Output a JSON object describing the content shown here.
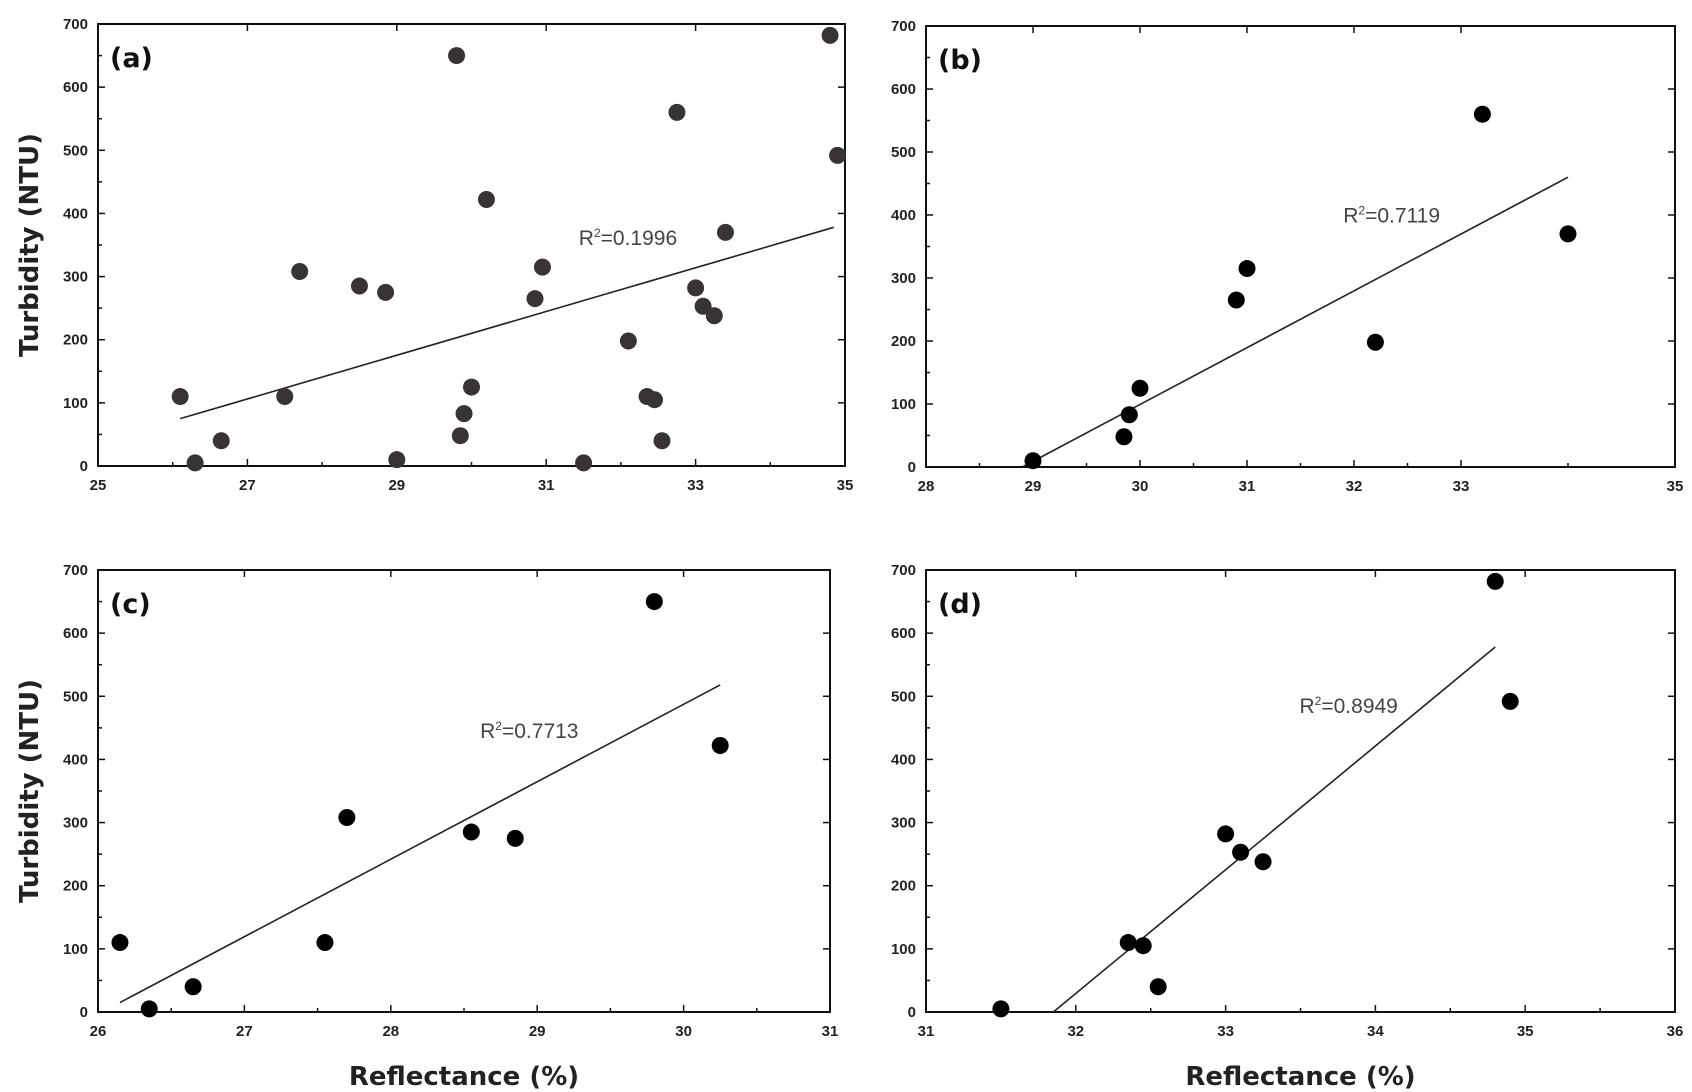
{
  "figure": {
    "ylabel": "Turbidity (NTU)",
    "xlabel": "Reflectance (%)"
  },
  "colors": {
    "marker_a": "#3a3333",
    "marker": "#000000",
    "fit_line": "#222222",
    "frame": "#111111"
  },
  "chart_data": [
    {
      "type": "scatter",
      "panel_label": "(a)",
      "r2_text": "R",
      "r2_sup": "2",
      "r2_value": "=0.1996",
      "xlim": [
        25,
        35
      ],
      "ylim": [
        0,
        700
      ],
      "xticks": [
        25,
        27,
        29,
        31,
        33,
        35
      ],
      "yticks": [
        0,
        100,
        200,
        300,
        400,
        500,
        600,
        700
      ],
      "points": [
        [
          26.1,
          110
        ],
        [
          26.3,
          5
        ],
        [
          26.65,
          40
        ],
        [
          27.5,
          110
        ],
        [
          27.7,
          308
        ],
        [
          28.5,
          285
        ],
        [
          28.85,
          275
        ],
        [
          29.0,
          10
        ],
        [
          29.8,
          650
        ],
        [
          29.85,
          48
        ],
        [
          29.9,
          83
        ],
        [
          30.0,
          125
        ],
        [
          30.2,
          422
        ],
        [
          30.85,
          265
        ],
        [
          30.95,
          315
        ],
        [
          31.5,
          5
        ],
        [
          32.1,
          198
        ],
        [
          32.35,
          110
        ],
        [
          32.45,
          105
        ],
        [
          32.55,
          40
        ],
        [
          32.75,
          560
        ],
        [
          33.0,
          282
        ],
        [
          33.1,
          253
        ],
        [
          33.25,
          238
        ],
        [
          33.4,
          370
        ],
        [
          34.8,
          682
        ],
        [
          34.9,
          492
        ]
      ],
      "fit_line": {
        "x": [
          26.1,
          34.85
        ],
        "y": [
          75,
          378
        ]
      },
      "show_ylabel": true,
      "show_xlabel": false
    },
    {
      "type": "scatter",
      "panel_label": "(b)",
      "r2_text": "R",
      "r2_sup": "2",
      "r2_value": "=0.7119",
      "xlim": [
        28,
        35
      ],
      "ylim": [
        0,
        700
      ],
      "xticks": [
        28,
        29,
        30,
        31,
        32,
        33,
        35
      ],
      "yticks": [
        0,
        100,
        200,
        300,
        400,
        500,
        600,
        700
      ],
      "points": [
        [
          29.0,
          10
        ],
        [
          29.85,
          48
        ],
        [
          29.9,
          83
        ],
        [
          30.0,
          125
        ],
        [
          30.9,
          265
        ],
        [
          31.0,
          315
        ],
        [
          32.2,
          198
        ],
        [
          33.2,
          560
        ],
        [
          34.0,
          370
        ]
      ],
      "fit_line": {
        "x": [
          28.9,
          34.0
        ],
        "y": [
          0,
          460
        ]
      },
      "show_ylabel": false,
      "show_xlabel": false
    },
    {
      "type": "scatter",
      "panel_label": "(c)",
      "r2_text": "R",
      "r2_sup": "2",
      "r2_value": "=0.7713",
      "xlim": [
        26,
        31
      ],
      "ylim": [
        0,
        700
      ],
      "xticks": [
        26,
        27,
        28,
        29,
        30,
        31
      ],
      "yticks": [
        0,
        100,
        200,
        300,
        400,
        500,
        600,
        700
      ],
      "points": [
        [
          26.15,
          110
        ],
        [
          26.35,
          5
        ],
        [
          26.65,
          40
        ],
        [
          27.55,
          110
        ],
        [
          27.7,
          308
        ],
        [
          28.55,
          285
        ],
        [
          28.85,
          275
        ],
        [
          29.8,
          650
        ],
        [
          30.25,
          422
        ]
      ],
      "fit_line": {
        "x": [
          26.15,
          30.25
        ],
        "y": [
          15,
          518
        ]
      },
      "show_ylabel": true,
      "show_xlabel": true
    },
    {
      "type": "scatter",
      "panel_label": "(d)",
      "r2_text": "R",
      "r2_sup": "2",
      "r2_value": "=0.8949",
      "xlim": [
        31,
        36
      ],
      "ylim": [
        0,
        700
      ],
      "xticks": [
        31,
        32,
        33,
        34,
        35,
        36
      ],
      "yticks": [
        0,
        100,
        200,
        300,
        400,
        500,
        600,
        700
      ],
      "points": [
        [
          31.5,
          5
        ],
        [
          32.35,
          110
        ],
        [
          32.45,
          105
        ],
        [
          32.55,
          40
        ],
        [
          33.0,
          282
        ],
        [
          33.1,
          253
        ],
        [
          33.25,
          238
        ],
        [
          34.8,
          682
        ],
        [
          34.9,
          492
        ]
      ],
      "fit_line": {
        "x": [
          31.85,
          34.8
        ],
        "y": [
          0,
          578
        ]
      },
      "show_ylabel": false,
      "show_xlabel": true
    }
  ]
}
